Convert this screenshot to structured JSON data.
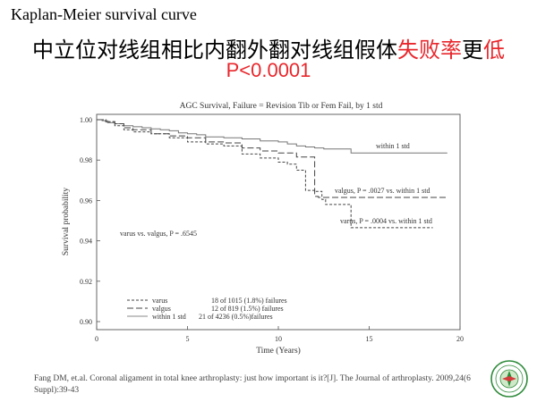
{
  "slide": {
    "title_en": "Kaplan-Meier survival curve",
    "title_zh_black": "中立位对线组相比内翻外翻对线组假体",
    "title_zh_red1": "失败率",
    "title_zh_black2": "更",
    "title_zh_red2": "低",
    "pvalue": "P<0.0001",
    "reference": "Fang DM, et.al. Coronal aligament in total knee arthroplasty: just how important is it?[J]. The Journal of arthroplasty. 2009,24(6 Suppl):39-43"
  },
  "chart_data": {
    "type": "line",
    "title": "AGC Survival, Failure = Revision Tib or Fem Fail, by 1 std",
    "xlabel": "Time (Years)",
    "ylabel": "Survival probability",
    "xlim": [
      0,
      20
    ],
    "ylim": [
      0.9,
      1.0
    ],
    "xticks": [
      0,
      5,
      10,
      15,
      20
    ],
    "yticks": [
      0.9,
      0.92,
      0.94,
      0.96,
      0.98,
      1.0
    ],
    "ytick_labels": [
      "0.90",
      "0.92",
      "0.94",
      "0.96",
      "0.98",
      "1.00"
    ],
    "grid": false,
    "series": [
      {
        "name": "within 1 std",
        "style": "solid",
        "x": [
          0,
          0.3,
          0.6,
          1,
          1.5,
          2,
          2.5,
          3,
          3.5,
          4,
          4.5,
          5,
          5.5,
          6,
          7,
          8,
          9,
          10,
          10.5,
          11,
          11.5,
          12,
          12.5,
          13,
          13.7,
          14,
          16,
          18,
          19.3
        ],
        "y": [
          1.0,
          0.9995,
          0.9985,
          0.998,
          0.997,
          0.9965,
          0.996,
          0.9955,
          0.995,
          0.9945,
          0.9935,
          0.993,
          0.9925,
          0.9915,
          0.991,
          0.9905,
          0.9895,
          0.989,
          0.988,
          0.987,
          0.9865,
          0.986,
          0.9855,
          0.9855,
          0.9855,
          0.9835,
          0.9835,
          0.9835,
          0.9835
        ]
      },
      {
        "name": "valgus",
        "style": "long-dash",
        "x": [
          0,
          0.5,
          1,
          1.5,
          2,
          3,
          4,
          5,
          6,
          7,
          8,
          9,
          10,
          11,
          11.7,
          12,
          12.2,
          13,
          16,
          19.3
        ],
        "y": [
          1.0,
          0.999,
          0.998,
          0.996,
          0.995,
          0.993,
          0.992,
          0.991,
          0.989,
          0.9885,
          0.986,
          0.9845,
          0.9835,
          0.9815,
          0.9815,
          0.962,
          0.9615,
          0.9615,
          0.9615,
          0.9615
        ]
      },
      {
        "name": "varus",
        "style": "short-dash",
        "x": [
          0,
          0.5,
          1,
          1.5,
          2,
          3,
          4,
          5,
          6,
          7,
          8,
          9,
          10,
          10.5,
          11,
          11.5,
          12,
          12.4,
          12.6,
          13.5,
          14,
          16,
          18.5
        ],
        "y": [
          1.0,
          0.999,
          0.997,
          0.995,
          0.994,
          0.993,
          0.991,
          0.989,
          0.988,
          0.987,
          0.983,
          0.981,
          0.979,
          0.978,
          0.975,
          0.965,
          0.9645,
          0.9605,
          0.958,
          0.958,
          0.9465,
          0.9465,
          0.9465
        ]
      }
    ],
    "annotations": [
      {
        "text": "within 1 std"
      },
      {
        "text": "valgus, P = .0027 vs. within 1 std"
      },
      {
        "text": "varus, P = .0004 vs. within 1 std"
      },
      {
        "text": "varus vs. valgus, P = .6545"
      }
    ],
    "legend": {
      "position": "bottom-left",
      "entries": [
        {
          "name": "varus",
          "style": "short-dash",
          "text": "18 of 1015 (1.8%) failures"
        },
        {
          "name": "valgus",
          "style": "long-dash",
          "text": "12 of 819 (1.5%) failures"
        },
        {
          "name": "within 1 std",
          "style": "solid",
          "text": "21 of 4236 (0.5%)failures"
        }
      ]
    }
  }
}
